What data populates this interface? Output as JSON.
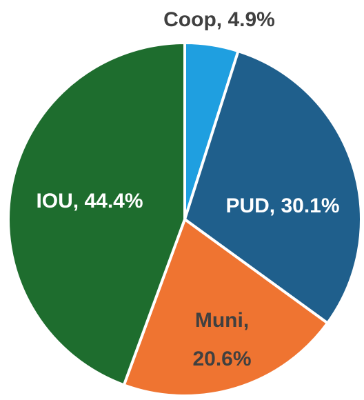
{
  "chart_data": {
    "type": "pie",
    "values": [
      4.9,
      30.1,
      20.6,
      44.4
    ],
    "value_labels": [
      "Coop, 4.9%",
      "PUD, 30.1%",
      "Muni, 20.6%",
      "IOU, 44.4%"
    ],
    "colors": [
      "#1f9fe0",
      "#1f5f8c",
      "#ef7431",
      "#1e6d2e"
    ],
    "label_colors": [
      "#404040",
      "#ffffff",
      "#404040",
      "#ffffff"
    ]
  }
}
